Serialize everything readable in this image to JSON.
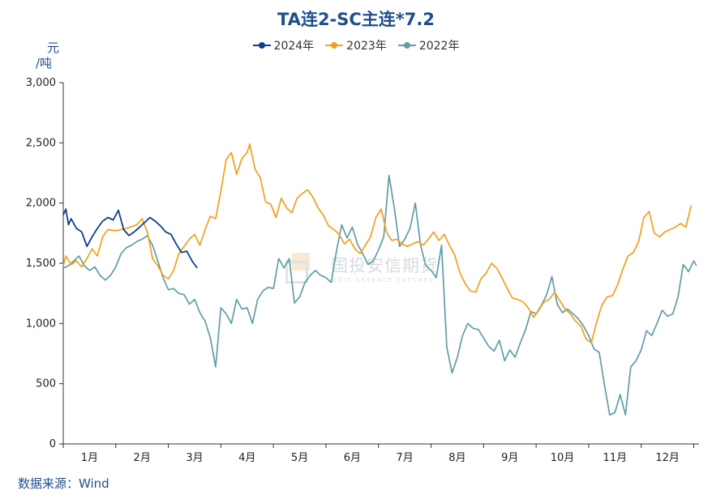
{
  "chart_data": {
    "type": "line",
    "title": "TA连2-SC主连*7.2",
    "ylabel": "元/吨",
    "unit_top": "元",
    "unit_bottom": "/吨",
    "ylim": [
      0,
      3000
    ],
    "yticks": [
      0,
      500,
      1000,
      1500,
      2000,
      2500,
      3000
    ],
    "ytick_labels": [
      "0",
      "500",
      "1,000",
      "1,500",
      "2,000",
      "2,500",
      "3,000"
    ],
    "xlim": [
      0,
      12.1
    ],
    "categories": [
      "1月",
      "2月",
      "3月",
      "4月",
      "5月",
      "6月",
      "7月",
      "8月",
      "9月",
      "10月",
      "11月",
      "12月"
    ],
    "series": [
      {
        "name": "2024年",
        "color": "#0d3f91",
        "points": [
          [
            0.0,
            1900
          ],
          [
            0.05,
            1950
          ],
          [
            0.1,
            1820
          ],
          [
            0.15,
            1870
          ],
          [
            0.25,
            1790
          ],
          [
            0.35,
            1760
          ],
          [
            0.45,
            1640
          ],
          [
            0.55,
            1720
          ],
          [
            0.65,
            1790
          ],
          [
            0.75,
            1850
          ],
          [
            0.85,
            1880
          ],
          [
            0.95,
            1860
          ],
          [
            1.05,
            1940
          ],
          [
            1.15,
            1780
          ],
          [
            1.25,
            1730
          ],
          [
            1.35,
            1760
          ],
          [
            1.45,
            1800
          ],
          [
            1.55,
            1840
          ],
          [
            1.65,
            1880
          ],
          [
            1.75,
            1850
          ],
          [
            1.85,
            1810
          ],
          [
            1.95,
            1760
          ],
          [
            2.05,
            1740
          ],
          [
            2.15,
            1660
          ],
          [
            2.25,
            1590
          ],
          [
            2.35,
            1600
          ],
          [
            2.45,
            1520
          ],
          [
            2.55,
            1460
          ]
        ]
      },
      {
        "name": "2023年",
        "color": "#f29f1c",
        "points": [
          [
            0.0,
            1480
          ],
          [
            0.05,
            1560
          ],
          [
            0.15,
            1490
          ],
          [
            0.25,
            1520
          ],
          [
            0.35,
            1470
          ],
          [
            0.45,
            1540
          ],
          [
            0.55,
            1620
          ],
          [
            0.65,
            1560
          ],
          [
            0.75,
            1720
          ],
          [
            0.85,
            1780
          ],
          [
            1.0,
            1770
          ],
          [
            1.2,
            1790
          ],
          [
            1.4,
            1820
          ],
          [
            1.5,
            1870
          ],
          [
            1.6,
            1760
          ],
          [
            1.7,
            1540
          ],
          [
            1.8,
            1480
          ],
          [
            1.9,
            1400
          ],
          [
            2.0,
            1370
          ],
          [
            2.1,
            1440
          ],
          [
            2.2,
            1580
          ],
          [
            2.3,
            1640
          ],
          [
            2.4,
            1700
          ],
          [
            2.5,
            1740
          ],
          [
            2.6,
            1650
          ],
          [
            2.7,
            1780
          ],
          [
            2.8,
            1890
          ],
          [
            2.9,
            1870
          ],
          [
            3.0,
            2100
          ],
          [
            3.1,
            2360
          ],
          [
            3.2,
            2420
          ],
          [
            3.3,
            2240
          ],
          [
            3.4,
            2370
          ],
          [
            3.5,
            2420
          ],
          [
            3.55,
            2490
          ],
          [
            3.65,
            2280
          ],
          [
            3.75,
            2210
          ],
          [
            3.85,
            2010
          ],
          [
            3.95,
            1990
          ],
          [
            4.05,
            1880
          ],
          [
            4.15,
            2040
          ],
          [
            4.25,
            1960
          ],
          [
            4.35,
            1920
          ],
          [
            4.45,
            2040
          ],
          [
            4.55,
            2080
          ],
          [
            4.65,
            2110
          ],
          [
            4.75,
            2050
          ],
          [
            4.85,
            1960
          ],
          [
            4.95,
            1900
          ],
          [
            5.05,
            1810
          ],
          [
            5.15,
            1780
          ],
          [
            5.25,
            1740
          ],
          [
            5.35,
            1660
          ],
          [
            5.45,
            1700
          ],
          [
            5.55,
            1620
          ],
          [
            5.65,
            1580
          ],
          [
            5.75,
            1650
          ],
          [
            5.85,
            1720
          ],
          [
            5.95,
            1880
          ],
          [
            6.05,
            1950
          ],
          [
            6.15,
            1760
          ],
          [
            6.25,
            1690
          ],
          [
            6.35,
            1700
          ],
          [
            6.45,
            1660
          ],
          [
            6.55,
            1640
          ],
          [
            6.65,
            1660
          ],
          [
            6.75,
            1680
          ],
          [
            6.85,
            1650
          ],
          [
            6.95,
            1700
          ],
          [
            7.05,
            1760
          ],
          [
            7.15,
            1690
          ],
          [
            7.25,
            1740
          ],
          [
            7.35,
            1650
          ],
          [
            7.45,
            1570
          ],
          [
            7.55,
            1420
          ],
          [
            7.65,
            1330
          ],
          [
            7.75,
            1270
          ],
          [
            7.85,
            1260
          ],
          [
            7.95,
            1370
          ],
          [
            8.05,
            1420
          ],
          [
            8.15,
            1500
          ],
          [
            8.25,
            1460
          ],
          [
            8.35,
            1380
          ],
          [
            8.45,
            1290
          ],
          [
            8.55,
            1210
          ],
          [
            8.65,
            1200
          ],
          [
            8.75,
            1180
          ],
          [
            8.85,
            1130
          ],
          [
            8.95,
            1050
          ],
          [
            9.05,
            1110
          ],
          [
            9.15,
            1180
          ],
          [
            9.25,
            1200
          ],
          [
            9.35,
            1260
          ],
          [
            9.45,
            1190
          ],
          [
            9.55,
            1120
          ],
          [
            9.65,
            1080
          ],
          [
            9.75,
            1020
          ],
          [
            9.85,
            980
          ],
          [
            9.95,
            870
          ],
          [
            10.05,
            840
          ],
          [
            10.15,
            1010
          ],
          [
            10.25,
            1150
          ],
          [
            10.35,
            1220
          ],
          [
            10.45,
            1230
          ],
          [
            10.55,
            1320
          ],
          [
            10.65,
            1450
          ],
          [
            10.75,
            1560
          ],
          [
            10.85,
            1590
          ],
          [
            10.95,
            1680
          ],
          [
            11.05,
            1880
          ],
          [
            11.15,
            1930
          ],
          [
            11.25,
            1750
          ],
          [
            11.35,
            1720
          ],
          [
            11.45,
            1760
          ],
          [
            11.55,
            1780
          ],
          [
            11.65,
            1800
          ],
          [
            11.75,
            1830
          ],
          [
            11.85,
            1800
          ],
          [
            11.95,
            1980
          ]
        ]
      },
      {
        "name": "2022年",
        "color": "#5f9ea6",
        "points": [
          [
            0.0,
            1460
          ],
          [
            0.1,
            1480
          ],
          [
            0.2,
            1520
          ],
          [
            0.3,
            1560
          ],
          [
            0.4,
            1480
          ],
          [
            0.5,
            1440
          ],
          [
            0.6,
            1470
          ],
          [
            0.7,
            1400
          ],
          [
            0.8,
            1360
          ],
          [
            0.9,
            1400
          ],
          [
            1.0,
            1470
          ],
          [
            1.1,
            1580
          ],
          [
            1.2,
            1630
          ],
          [
            1.3,
            1650
          ],
          [
            1.4,
            1680
          ],
          [
            1.5,
            1700
          ],
          [
            1.6,
            1730
          ],
          [
            1.7,
            1650
          ],
          [
            1.8,
            1520
          ],
          [
            1.9,
            1380
          ],
          [
            2.0,
            1280
          ],
          [
            2.1,
            1290
          ],
          [
            2.2,
            1250
          ],
          [
            2.3,
            1240
          ],
          [
            2.4,
            1160
          ],
          [
            2.5,
            1200
          ],
          [
            2.6,
            1090
          ],
          [
            2.7,
            1020
          ],
          [
            2.8,
            880
          ],
          [
            2.9,
            640
          ],
          [
            3.0,
            1130
          ],
          [
            3.1,
            1080
          ],
          [
            3.2,
            1000
          ],
          [
            3.3,
            1200
          ],
          [
            3.4,
            1120
          ],
          [
            3.5,
            1130
          ],
          [
            3.6,
            1000
          ],
          [
            3.7,
            1200
          ],
          [
            3.8,
            1270
          ],
          [
            3.9,
            1300
          ],
          [
            4.0,
            1290
          ],
          [
            4.1,
            1540
          ],
          [
            4.2,
            1460
          ],
          [
            4.3,
            1540
          ],
          [
            4.4,
            1170
          ],
          [
            4.5,
            1220
          ],
          [
            4.6,
            1340
          ],
          [
            4.7,
            1400
          ],
          [
            4.8,
            1440
          ],
          [
            4.9,
            1400
          ],
          [
            5.0,
            1380
          ],
          [
            5.1,
            1340
          ],
          [
            5.2,
            1600
          ],
          [
            5.3,
            1820
          ],
          [
            5.4,
            1710
          ],
          [
            5.5,
            1800
          ],
          [
            5.6,
            1660
          ],
          [
            5.7,
            1580
          ],
          [
            5.8,
            1490
          ],
          [
            5.9,
            1520
          ],
          [
            6.0,
            1610
          ],
          [
            6.1,
            1720
          ],
          [
            6.2,
            2230
          ],
          [
            6.3,
            1960
          ],
          [
            6.4,
            1640
          ],
          [
            6.5,
            1700
          ],
          [
            6.6,
            1790
          ],
          [
            6.7,
            2000
          ],
          [
            6.8,
            1650
          ],
          [
            6.9,
            1480
          ],
          [
            7.0,
            1440
          ],
          [
            7.1,
            1380
          ],
          [
            7.2,
            1650
          ],
          [
            7.3,
            800
          ],
          [
            7.4,
            590
          ],
          [
            7.5,
            720
          ],
          [
            7.6,
            900
          ],
          [
            7.7,
            1000
          ],
          [
            7.8,
            960
          ],
          [
            7.9,
            950
          ],
          [
            8.0,
            880
          ],
          [
            8.1,
            810
          ],
          [
            8.2,
            770
          ],
          [
            8.3,
            860
          ],
          [
            8.4,
            690
          ],
          [
            8.5,
            780
          ],
          [
            8.6,
            720
          ],
          [
            8.7,
            840
          ],
          [
            8.8,
            950
          ],
          [
            8.9,
            1100
          ],
          [
            9.0,
            1080
          ],
          [
            9.1,
            1150
          ],
          [
            9.2,
            1240
          ],
          [
            9.3,
            1390
          ],
          [
            9.4,
            1160
          ],
          [
            9.5,
            1090
          ],
          [
            9.6,
            1120
          ],
          [
            9.7,
            1080
          ],
          [
            9.8,
            1040
          ],
          [
            9.9,
            980
          ],
          [
            10.0,
            900
          ],
          [
            10.1,
            790
          ],
          [
            10.2,
            760
          ],
          [
            10.3,
            490
          ],
          [
            10.4,
            240
          ],
          [
            10.5,
            260
          ],
          [
            10.6,
            410
          ],
          [
            10.7,
            240
          ],
          [
            10.8,
            640
          ],
          [
            10.9,
            690
          ],
          [
            11.0,
            780
          ],
          [
            11.1,
            940
          ],
          [
            11.2,
            900
          ],
          [
            11.3,
            1000
          ],
          [
            11.4,
            1110
          ],
          [
            11.5,
            1060
          ],
          [
            11.6,
            1080
          ],
          [
            11.7,
            1220
          ],
          [
            11.8,
            1490
          ],
          [
            11.9,
            1430
          ],
          [
            12.0,
            1520
          ],
          [
            12.05,
            1480
          ]
        ]
      }
    ]
  },
  "watermark": {
    "name": "国投安信期货",
    "sub": "SDIC ESSENCE FUTURES"
  },
  "source": "数据来源：Wind"
}
